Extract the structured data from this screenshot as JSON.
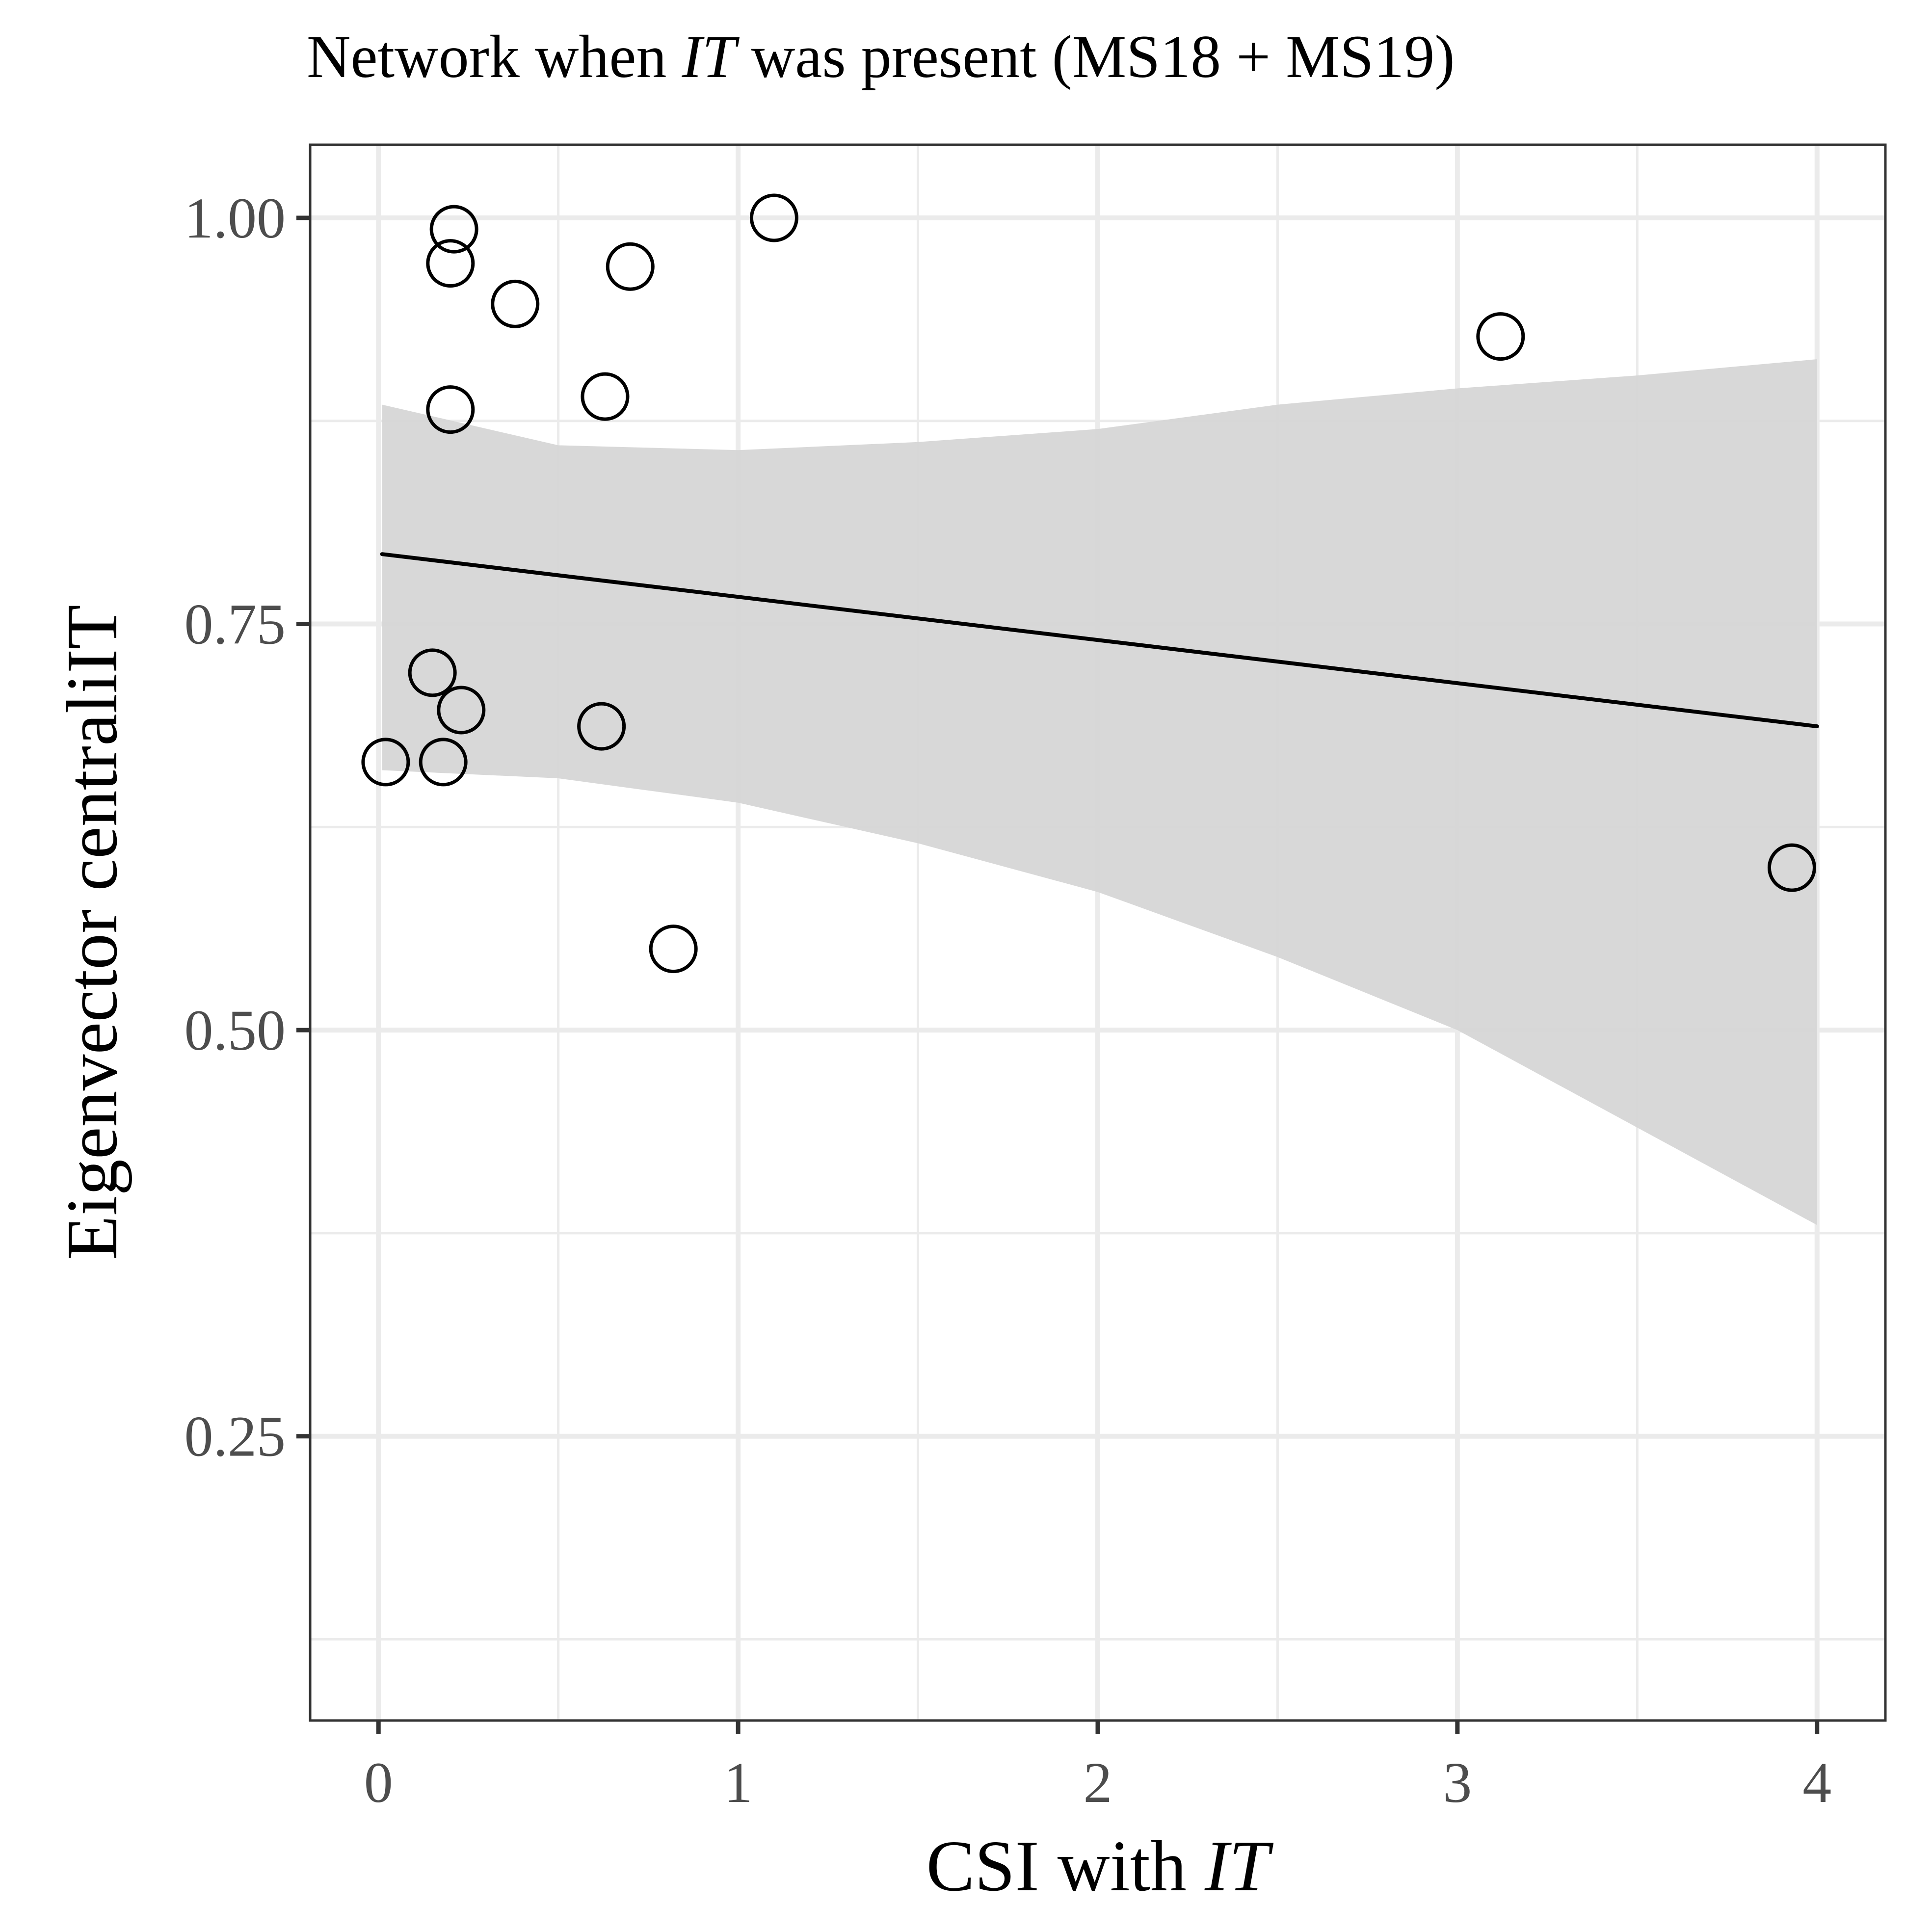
{
  "chart_data": {
    "type": "scatter",
    "title_prefix": "Network when ",
    "title_italic": "IT",
    "title_suffix": " was present (MS18 + MS19)",
    "xlabel_prefix": "CSI with ",
    "xlabel_italic": "IT",
    "ylabel": "Eigenvector centraliIT",
    "xlim": [
      -0.19,
      4.19
    ],
    "ylim": [
      0.075,
      1.045
    ],
    "grid": true,
    "x_ticks": [
      {
        "value": 0,
        "label": "0"
      },
      {
        "value": 1,
        "label": "1"
      },
      {
        "value": 2,
        "label": "2"
      },
      {
        "value": 3,
        "label": "3"
      },
      {
        "value": 4,
        "label": "4"
      }
    ],
    "y_ticks": [
      {
        "value": 0.25,
        "label": "0.25"
      },
      {
        "value": 0.5,
        "label": "0.50"
      },
      {
        "value": 0.75,
        "label": "0.75"
      },
      {
        "value": 1.0,
        "label": "1.00"
      }
    ],
    "x_minor": [
      0.5,
      1.5,
      2.5,
      3.5
    ],
    "y_minor": [
      0.125,
      0.375,
      0.625,
      0.875
    ],
    "points": [
      {
        "x": 0.21,
        "y": 0.993
      },
      {
        "x": 0.2,
        "y": 0.972
      },
      {
        "x": 0.38,
        "y": 0.947
      },
      {
        "x": 0.7,
        "y": 0.97
      },
      {
        "x": 1.1,
        "y": 1.0
      },
      {
        "x": 0.2,
        "y": 0.882
      },
      {
        "x": 0.63,
        "y": 0.89
      },
      {
        "x": 3.12,
        "y": 0.927
      },
      {
        "x": 0.15,
        "y": 0.72
      },
      {
        "x": 0.23,
        "y": 0.697
      },
      {
        "x": 0.62,
        "y": 0.687
      },
      {
        "x": 0.02,
        "y": 0.665
      },
      {
        "x": 0.18,
        "y": 0.665
      },
      {
        "x": 0.82,
        "y": 0.55
      },
      {
        "x": 3.93,
        "y": 0.6
      }
    ],
    "trend": {
      "x": [
        0.01,
        4.0
      ],
      "y": [
        0.793,
        0.687
      ]
    },
    "confidence_band": {
      "x": [
        0.01,
        0.5,
        1.0,
        1.5,
        2.0,
        2.5,
        3.0,
        3.5,
        4.0
      ],
      "upper": [
        0.885,
        0.86,
        0.857,
        0.862,
        0.87,
        0.885,
        0.895,
        0.903,
        0.913
      ],
      "lower": [
        0.66,
        0.655,
        0.64,
        0.615,
        0.585,
        0.545,
        0.5,
        0.44,
        0.38
      ]
    },
    "colors": {
      "band": "#d6d6d6",
      "line": "#000000",
      "point_stroke": "#000000",
      "grid": "#ebebeb",
      "panel_border": "#333333",
      "tick_label": "#4d4d4d",
      "axis_title": "#000000"
    }
  }
}
